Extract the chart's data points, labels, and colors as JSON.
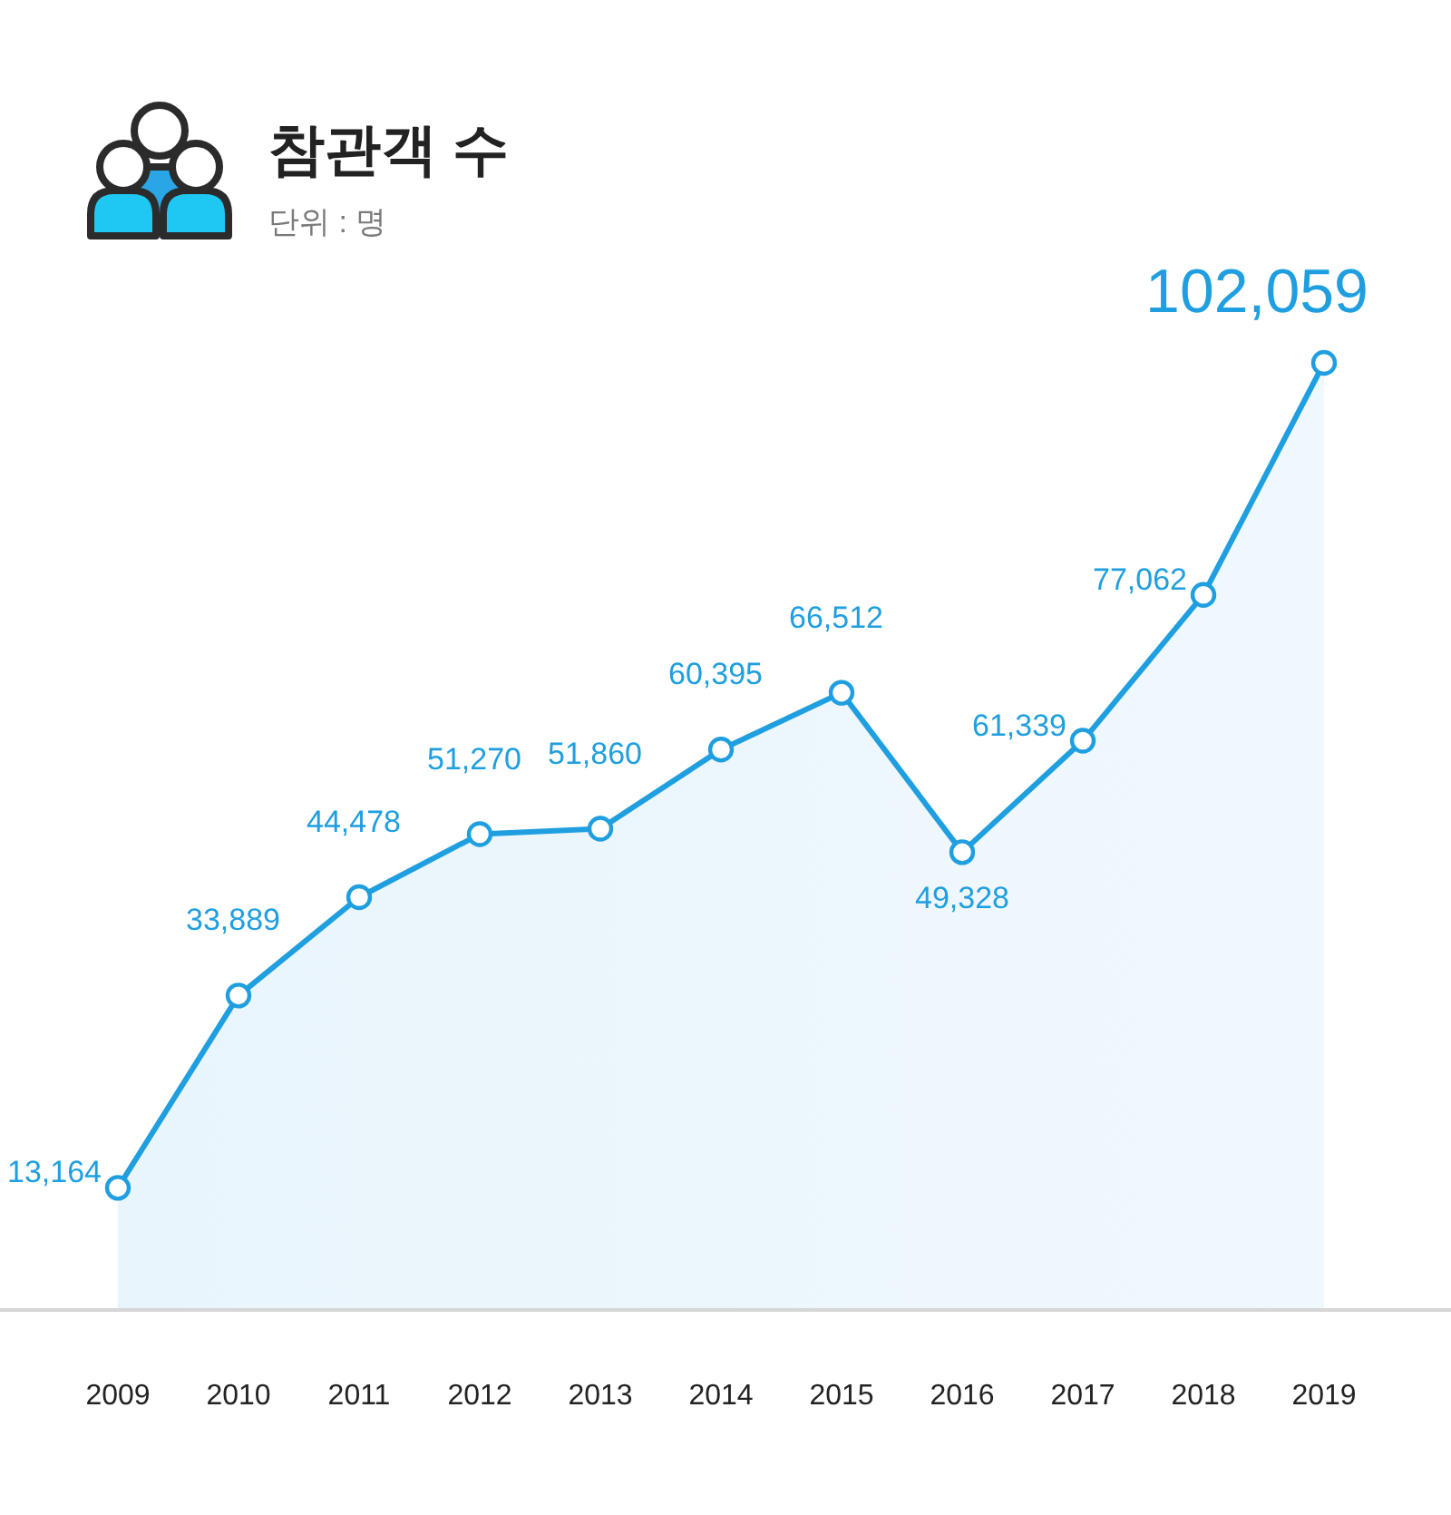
{
  "chart_data": {
    "type": "area",
    "title": "참관객 수",
    "subtitle": "단위 : 명",
    "categories": [
      "2009",
      "2010",
      "2011",
      "2012",
      "2013",
      "2014",
      "2015",
      "2016",
      "2017",
      "2018",
      "2019"
    ],
    "values": [
      13164,
      33889,
      44478,
      51270,
      51860,
      60395,
      66512,
      49328,
      61339,
      77062,
      102059
    ],
    "value_labels": [
      "13,164",
      "33,889",
      "44,478",
      "51,270",
      "51,860",
      "60,395",
      "66,512",
      "49,328",
      "61,339",
      "77,062",
      "102,059"
    ],
    "color": "#1f9fe0",
    "marker": "circle",
    "line_style": "solid",
    "tick_labels": "x"
  }
}
